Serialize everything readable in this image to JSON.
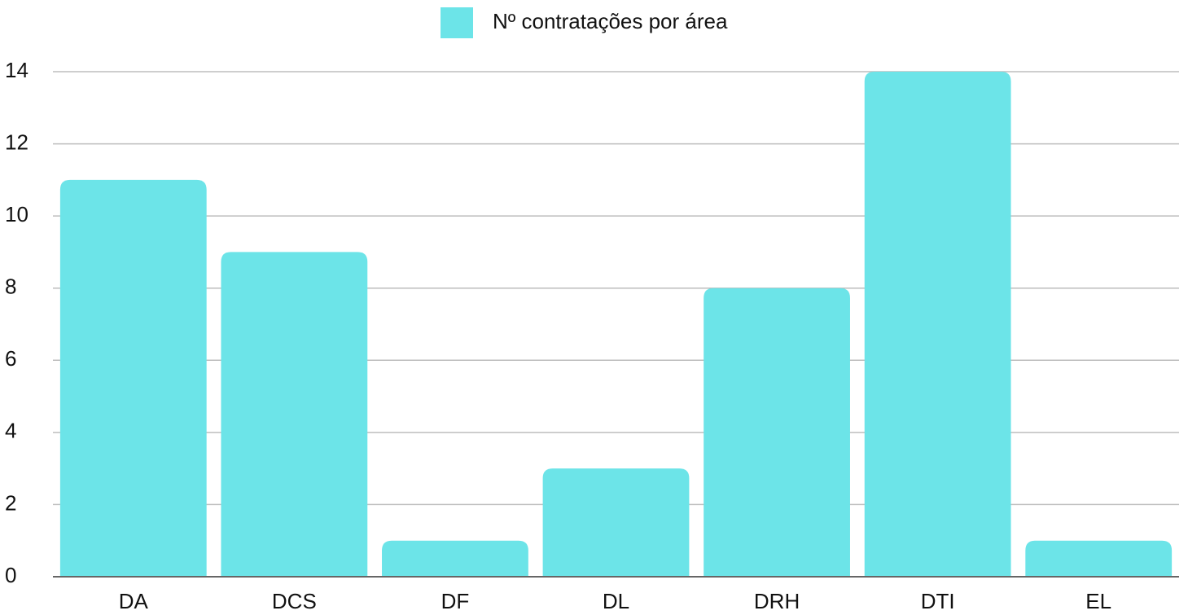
{
  "chart_data": {
    "type": "bar",
    "categories": [
      "DA",
      "DCS",
      "DF",
      "DL",
      "DRH",
      "DTI",
      "EL"
    ],
    "series": [
      {
        "name": "Nº contratações por área",
        "color": "#6ce4e8",
        "values": [
          11,
          9,
          1,
          3,
          8,
          14,
          1
        ]
      }
    ],
    "ylim": [
      0,
      14
    ],
    "yticks": [
      0,
      2,
      4,
      6,
      8,
      10,
      12,
      14
    ],
    "grid": true,
    "legend": "top"
  }
}
